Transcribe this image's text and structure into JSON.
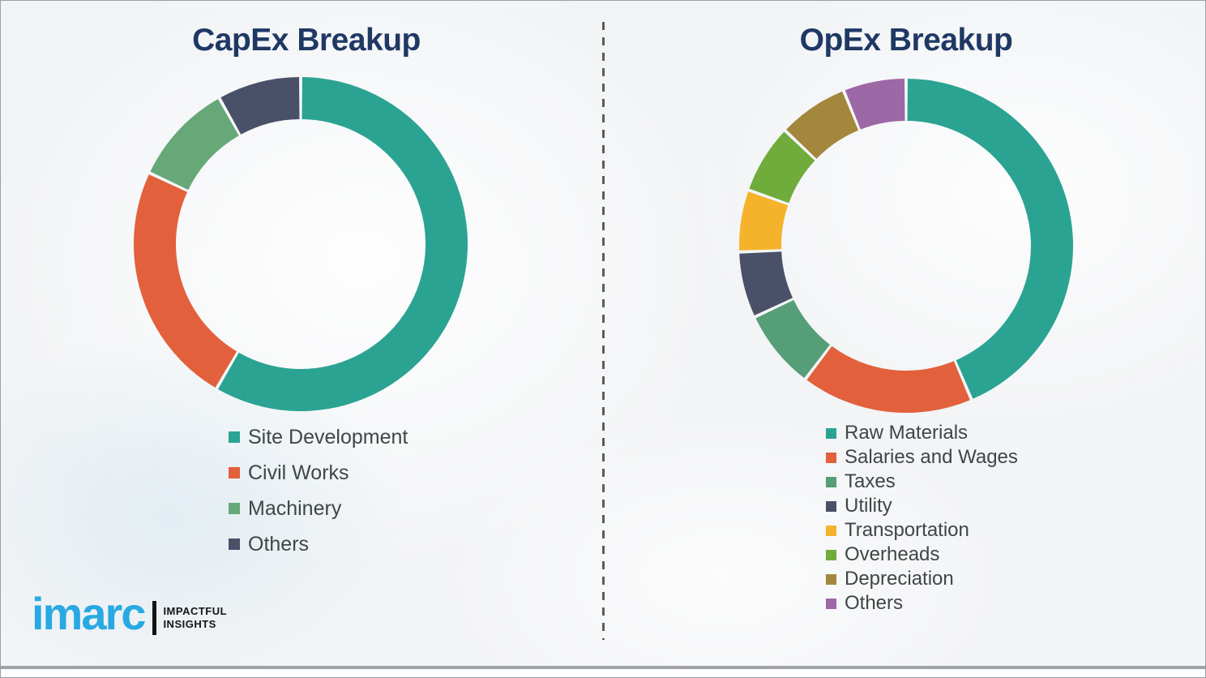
{
  "chart_data": [
    {
      "type": "pie",
      "variant": "donut",
      "title": "CapEx Breakup",
      "labels": [
        "Site Development",
        "Civil Works",
        "Machinery",
        "Others"
      ],
      "values": [
        58.4,
        23.6,
        9.9,
        8.1
      ],
      "colors": [
        "#2BA392",
        "#E2603C",
        "#66A878",
        "#4A5068"
      ],
      "start_angle_deg": 0,
      "direction": "clockwise",
      "legend_position": "below-left",
      "data_labels_shown": false,
      "values_note": "percent, estimated from arc angles (no numeric labels in image)"
    },
    {
      "type": "pie",
      "variant": "donut",
      "title": "OpEx Breakup",
      "labels": [
        "Raw Materials",
        "Salaries and Wages",
        "Taxes",
        "Utility",
        "Transportation",
        "Overheads",
        "Depreciation",
        "Others"
      ],
      "values": [
        43.6,
        16.7,
        7.7,
        6.4,
        6.0,
        6.7,
        6.8,
        6.1
      ],
      "colors": [
        "#2BA392",
        "#E2603C",
        "#559E78",
        "#4A5068",
        "#F5B32B",
        "#6FAC3C",
        "#A2873C",
        "#9D68A6"
      ],
      "start_angle_deg": 0,
      "direction": "clockwise",
      "legend_position": "below-left",
      "data_labels_shown": false,
      "values_note": "percent, estimated from arc angles (no numeric labels in image)"
    }
  ],
  "logo": {
    "brand": "imarc",
    "tagline_line1": "IMPACTFUL",
    "tagline_line2": "INSIGHTS",
    "brand_color": "#29A9E1"
  },
  "style": {
    "title_color": "#1F3864",
    "legend_text_color": "#404546",
    "divider_color": "#5c5c5c",
    "background_color": "#f3f4f6",
    "bottom_rule_color": "#9fa3a7"
  }
}
